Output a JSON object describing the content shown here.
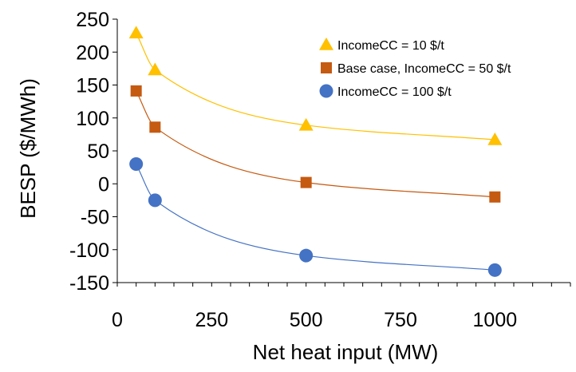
{
  "chart_data": {
    "type": "scatter",
    "xlabel": "Net heat input (MW)",
    "ylabel": "BESP ($/MWh)",
    "xlim": [
      0,
      1200
    ],
    "ylim": [
      -150,
      250
    ],
    "xticks": [
      "0",
      "250",
      "500",
      "750",
      "1000"
    ],
    "xtick_values": [
      0,
      250,
      500,
      750,
      1000
    ],
    "yticks": [
      "250",
      "200",
      "150",
      "100",
      "50",
      "0",
      "-50",
      "-100",
      "-150"
    ],
    "ytick_values": [
      250,
      200,
      150,
      100,
      50,
      0,
      -50,
      -100,
      -150
    ],
    "grid": false,
    "legend_position": "top-right",
    "line_style": "smoothed",
    "series": [
      {
        "name": "IncomeCC = 10 $/t",
        "marker": "triangle",
        "color": "#FFC000",
        "x": [
          50,
          100,
          500,
          1000
        ],
        "y": [
          229,
          173,
          89,
          67
        ]
      },
      {
        "name": "Base case, IncomeCC = 50 $/t",
        "marker": "square",
        "color": "#C55A11",
        "x": [
          50,
          100,
          500,
          1000
        ],
        "y": [
          141,
          86,
          2,
          -20
        ]
      },
      {
        "name": "IncomeCC = 100 $/t",
        "marker": "circle",
        "color": "#4472C4",
        "x": [
          50,
          100,
          500,
          1000
        ],
        "y": [
          30,
          -25,
          -109,
          -131
        ]
      }
    ]
  }
}
